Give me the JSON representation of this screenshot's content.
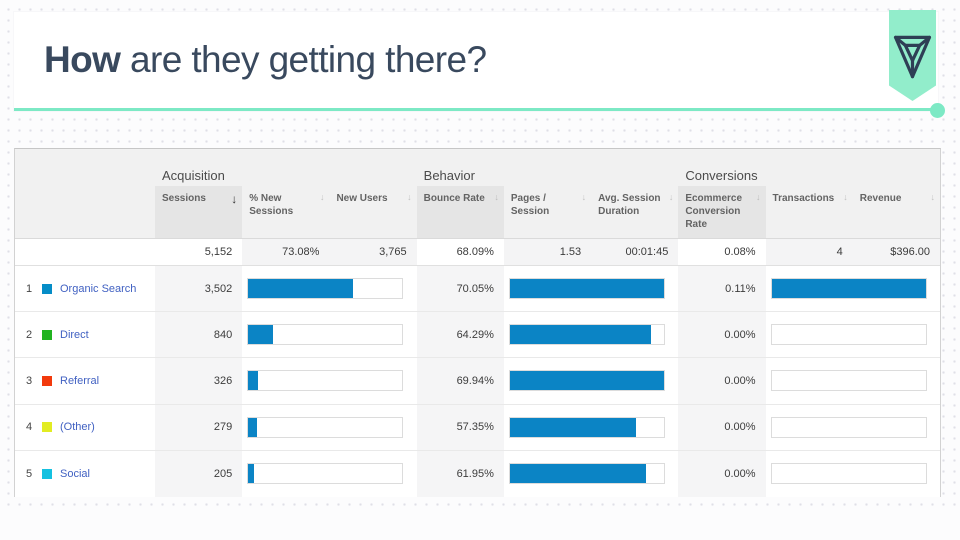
{
  "slide": {
    "title": {
      "bold": "How",
      "rest": " are they getting there?"
    },
    "accent_color": "#7de9c5",
    "logo_color": "#2e3f55"
  },
  "icons": {
    "sort_desc": "↓",
    "sort": "↓"
  },
  "table": {
    "bar_color": "#0b84c5",
    "groups": [
      {
        "label": "Acquisition"
      },
      {
        "label": "Behavior"
      },
      {
        "label": "Conversions"
      }
    ],
    "columns": [
      {
        "label": "Sessions"
      },
      {
        "label": "% New Sessions"
      },
      {
        "label": "New Users"
      },
      {
        "label": "Bounce Rate"
      },
      {
        "label": "Pages / Session"
      },
      {
        "label": "Avg. Session Duration"
      },
      {
        "label": "Ecommerce Conversion Rate"
      },
      {
        "label": "Transactions"
      },
      {
        "label": "Revenue"
      }
    ],
    "totals": {
      "sessions": "5,152",
      "new_sessions": "73.08%",
      "new_users": "3,765",
      "bounce_rate": "68.09%",
      "pages_session": "1.53",
      "avg_duration": "00:01:45",
      "ecomm_rate": "0.08%",
      "transactions": "4",
      "revenue": "$396.00"
    },
    "rows": [
      {
        "index": "1",
        "channel": "Organic Search",
        "color": "#058dc7",
        "sessions": "3,502",
        "sessions_bar": 68.0,
        "bounce": "70.05%",
        "bounce_bar": 100,
        "conv": "0.11%",
        "conv_bar": 100
      },
      {
        "index": "2",
        "channel": "Direct",
        "color": "#21b320",
        "sessions": "840",
        "sessions_bar": 16.3,
        "bounce": "64.29%",
        "bounce_bar": 91.8,
        "conv": "0.00%",
        "conv_bar": 0
      },
      {
        "index": "3",
        "channel": "Referral",
        "color": "#f23a0d",
        "sessions": "326",
        "sessions_bar": 6.3,
        "bounce": "69.94%",
        "bounce_bar": 99.8,
        "conv": "0.00%",
        "conv_bar": 0
      },
      {
        "index": "4",
        "channel": "(Other)",
        "color": "#e2ec23",
        "sessions": "279",
        "sessions_bar": 5.4,
        "bounce": "57.35%",
        "bounce_bar": 81.9,
        "conv": "0.00%",
        "conv_bar": 0
      },
      {
        "index": "5",
        "channel": "Social",
        "color": "#15c1e0",
        "sessions": "205",
        "sessions_bar": 4.0,
        "bounce": "61.95%",
        "bounce_bar": 88.4,
        "conv": "0.00%",
        "conv_bar": 0
      }
    ]
  }
}
